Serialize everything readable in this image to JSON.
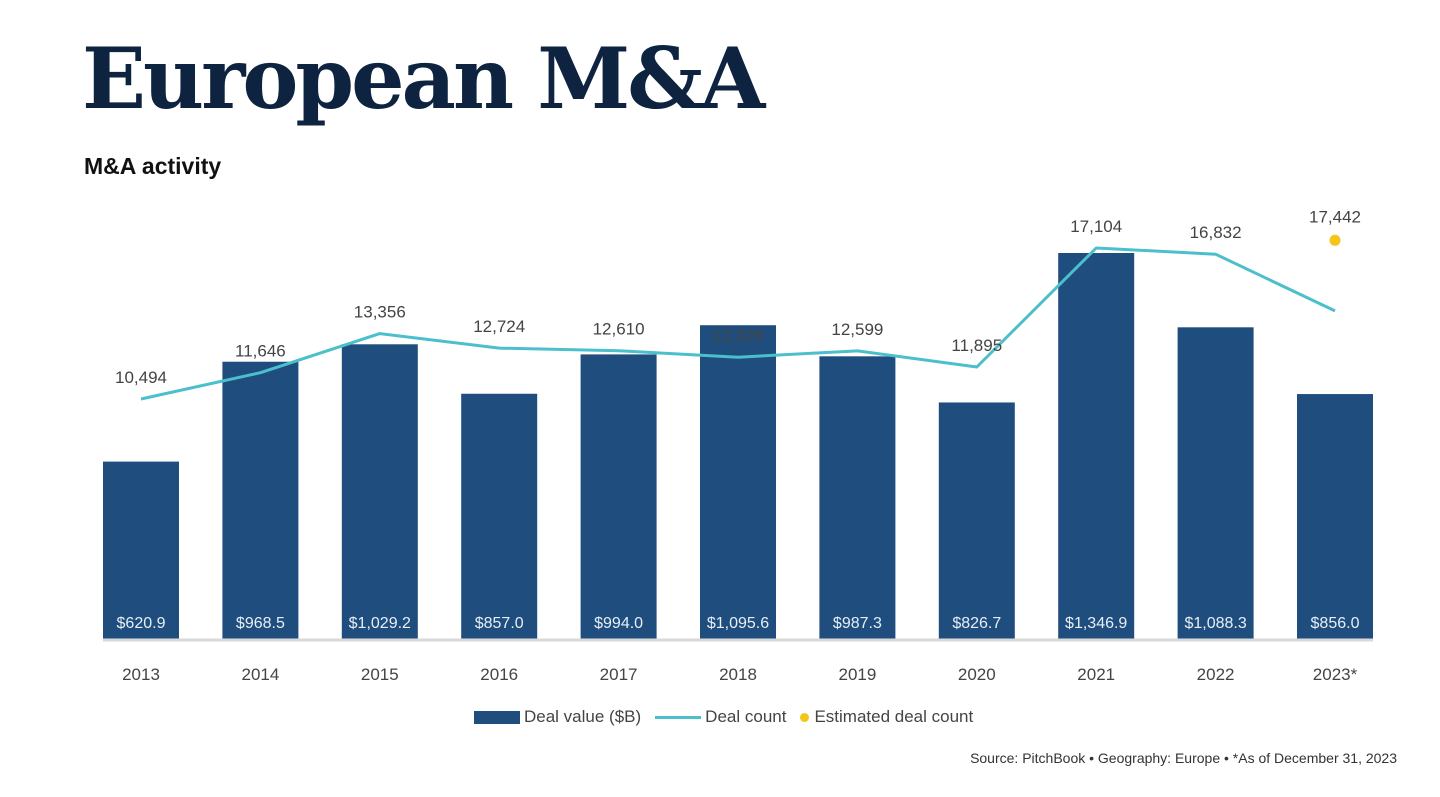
{
  "header": {
    "title": "European M&A",
    "subtitle": "M&A activity"
  },
  "legend": {
    "bar_label": "Deal value ($B)",
    "line_label": "Deal count",
    "dot_label": "Estimated deal count"
  },
  "footer": {
    "source": "Source: PitchBook  •  Geography: Europe  •  *As of December 31, 2023"
  },
  "colors": {
    "bar": "#1f4e7e",
    "line": "#4bbfcc",
    "estimate_dot": "#f5c518",
    "title": "#0d2340",
    "baseline": "#d9d9d9"
  },
  "chart_data": {
    "type": "bar",
    "title": "M&A activity",
    "xlabel": "",
    "ylabel": "",
    "grid": false,
    "legend_position": "bottom",
    "categories": [
      "2013",
      "2014",
      "2015",
      "2016",
      "2017",
      "2018",
      "2019",
      "2020",
      "2021",
      "2022",
      "2023*"
    ],
    "series": [
      {
        "name": "Deal value ($B)",
        "type": "bar",
        "values": [
          620.9,
          968.5,
          1029.2,
          857.0,
          994.0,
          1095.6,
          987.3,
          826.7,
          1346.9,
          1088.3,
          856.0
        ],
        "labels": [
          "$620.9",
          "$968.5",
          "$1,029.2",
          "$857.0",
          "$994.0",
          "$1,095.6",
          "$987.3",
          "$826.7",
          "$1,346.9",
          "$1,088.3",
          "$856.0"
        ],
        "ylim": [
          0,
          1400
        ]
      },
      {
        "name": "Deal count",
        "type": "line",
        "values": [
          10494,
          11646,
          13356,
          12724,
          12610,
          12326,
          12599,
          11895,
          17104,
          16832,
          14350
        ],
        "labels": [
          "10,494",
          "11,646",
          "13,356",
          "12,724",
          "12,610",
          "12,326",
          "12,599",
          "11,895",
          "17,104",
          "16,832",
          ""
        ],
        "ylim": [
          0,
          18000
        ]
      },
      {
        "name": "Estimated deal count",
        "type": "scatter",
        "values": [
          null,
          null,
          null,
          null,
          null,
          null,
          null,
          null,
          null,
          null,
          17442
        ],
        "labels": [
          "",
          "",
          "",
          "",
          "",
          "",
          "",
          "",
          "",
          "",
          "17,442"
        ]
      }
    ]
  }
}
